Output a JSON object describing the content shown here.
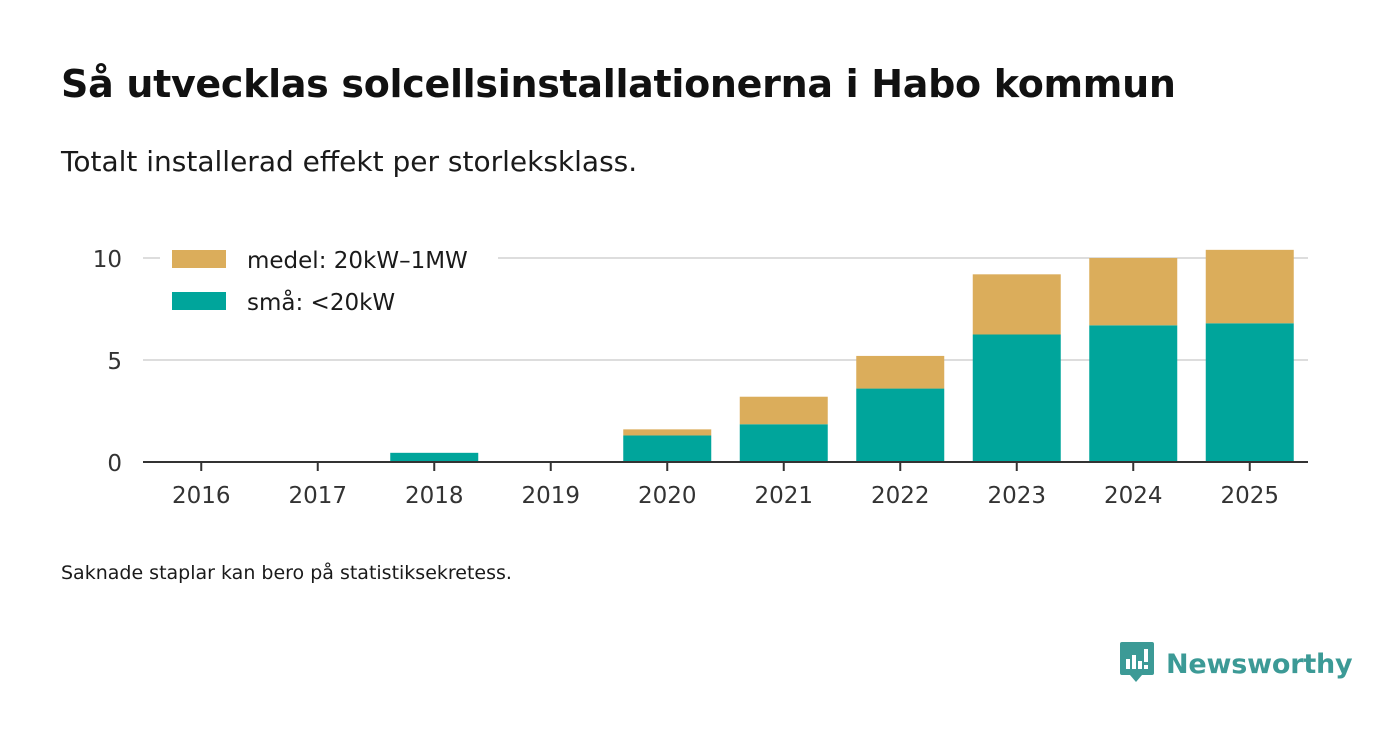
{
  "header": {
    "title": "Så utvecklas solcellsinstallationerna i Habo kommun",
    "subtitle": "Totalt installerad effekt per storleksklass."
  },
  "footer": {
    "note": "Saknade staplar kan bero på statistiksekretess.",
    "brand": "Newsworthy",
    "brand_icon": "newsworthy-logo-icon"
  },
  "colors": {
    "small": "#00a59b",
    "medium": "#dbad5b",
    "grid": "#dddddd",
    "axis": "#333333",
    "brand": "#3c9a96"
  },
  "chart_data": {
    "type": "bar",
    "stacked": true,
    "title": "Så utvecklas solcellsinstallationerna i Habo kommun",
    "subtitle": "Totalt installerad effekt per storleksklass.",
    "xlabel": "",
    "ylabel": "",
    "ylim": [
      0,
      11
    ],
    "yticks": [
      0,
      5,
      10
    ],
    "grid": true,
    "legend_position": "top-left",
    "categories": [
      "2016",
      "2017",
      "2018",
      "2019",
      "2020",
      "2021",
      "2022",
      "2023",
      "2024",
      "2025"
    ],
    "series": [
      {
        "name": "små: <20kW",
        "color": "#00a59b",
        "values": [
          0,
          0,
          0.45,
          0,
          1.3,
          1.85,
          3.6,
          6.25,
          6.7,
          6.8
        ]
      },
      {
        "name": "medel: 20kW–1MW",
        "color": "#dbad5b",
        "values": [
          0,
          0,
          0,
          0,
          0.3,
          1.35,
          1.6,
          2.95,
          3.3,
          3.6
        ]
      }
    ],
    "legend_order": [
      "medel: 20kW–1MW",
      "små: <20kW"
    ]
  }
}
